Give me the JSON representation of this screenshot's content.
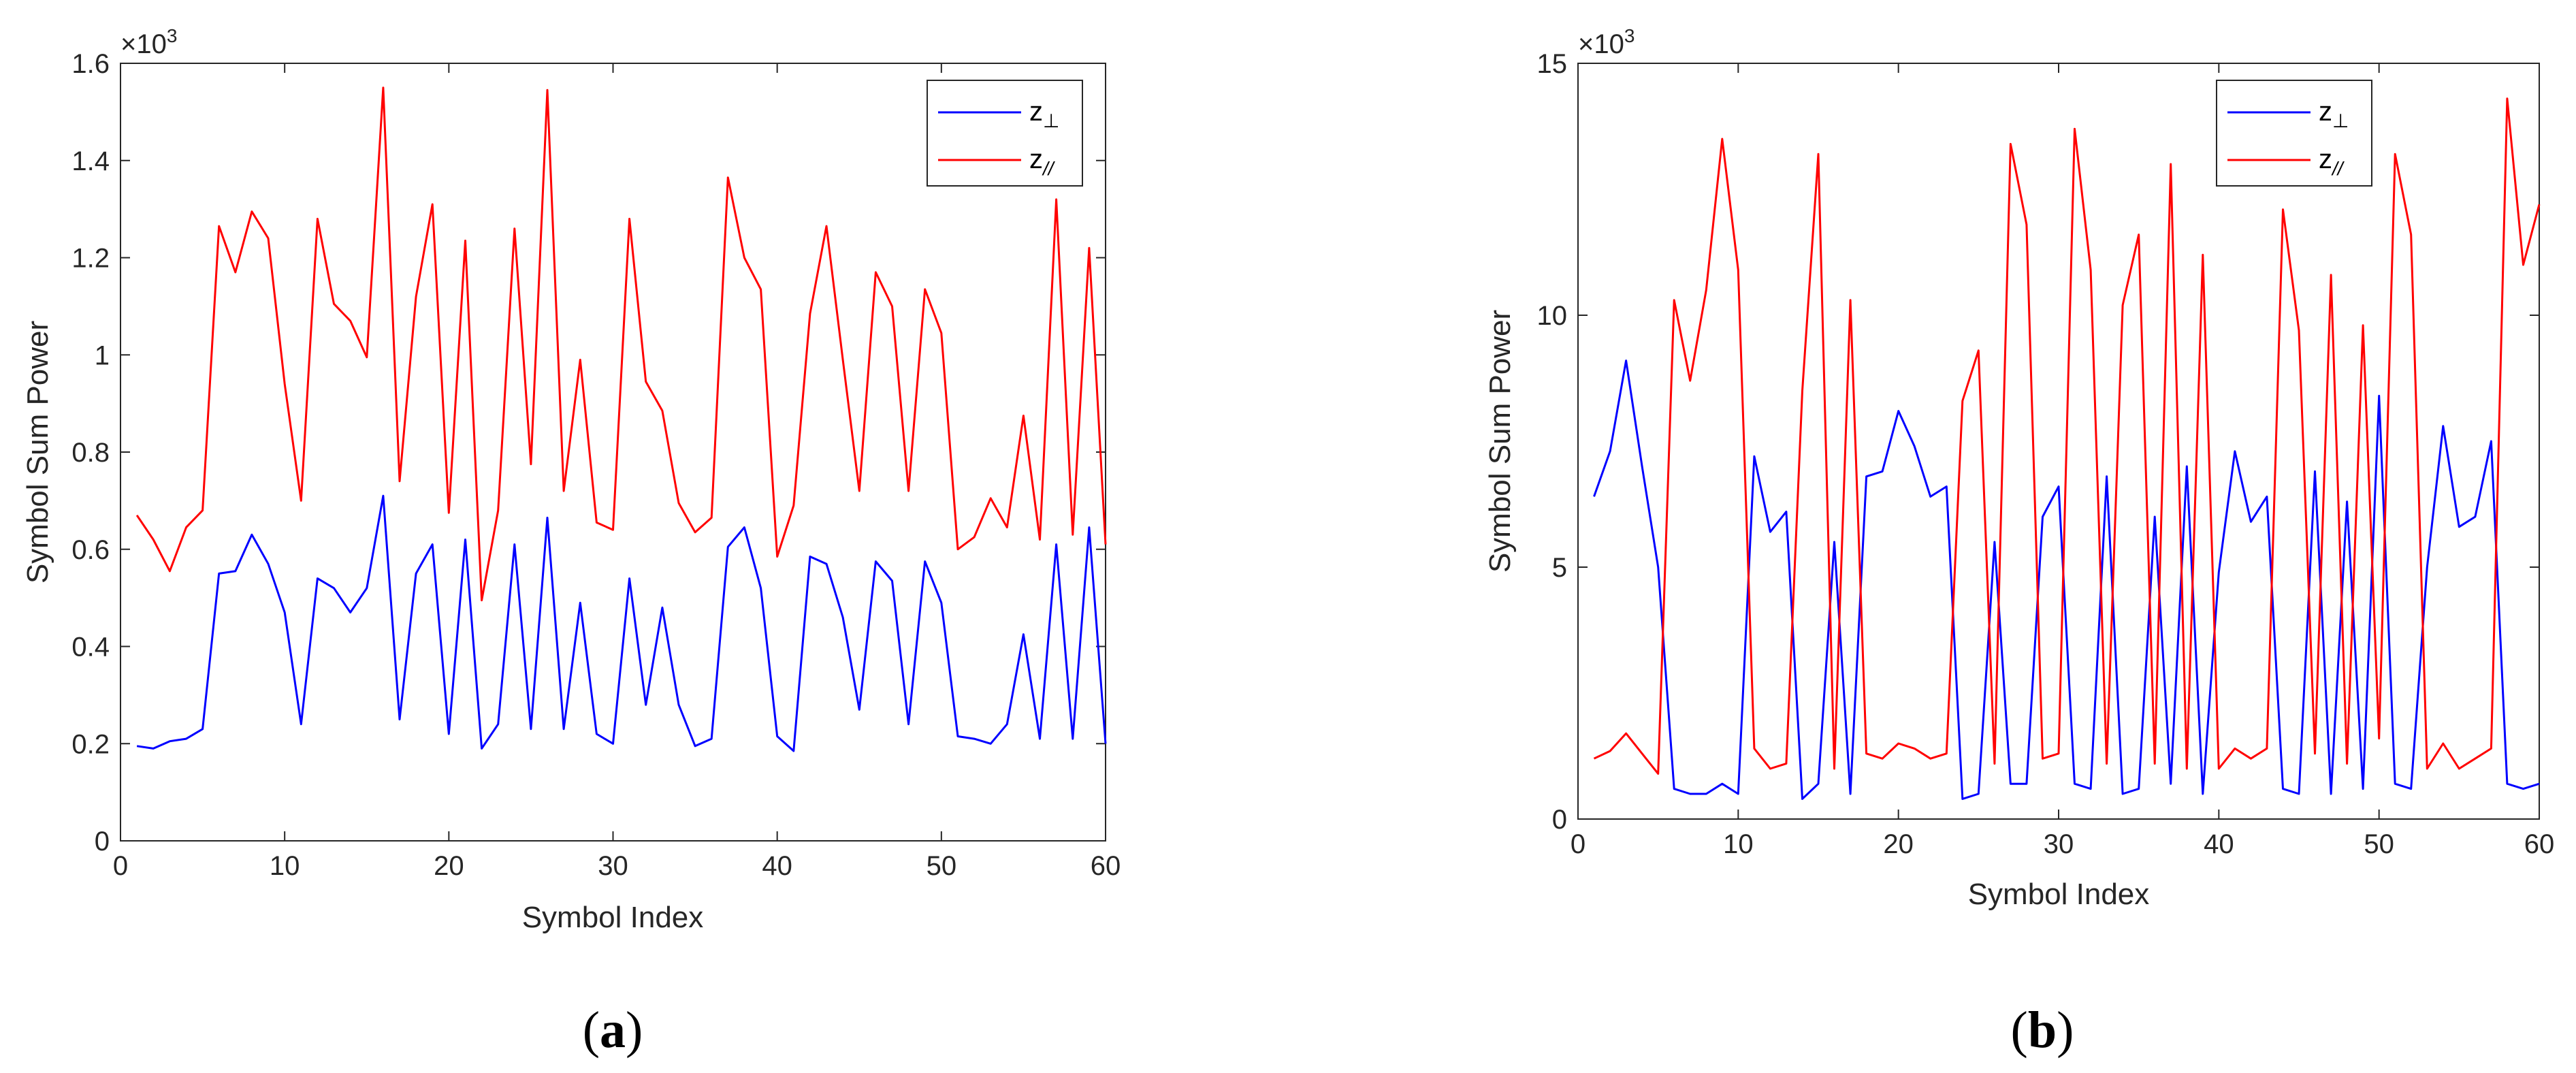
{
  "chart_data": [
    {
      "type": "line",
      "panel_label": "(a)",
      "panel_letter": "a",
      "xlabel": "Symbol Index",
      "ylabel": "Symbol Sum Power",
      "multiplier": "×10",
      "multiplier_exp": "3",
      "xlim": [
        0,
        60
      ],
      "ylim": [
        0,
        1.6
      ],
      "xticks": [
        0,
        10,
        20,
        30,
        40,
        50,
        60
      ],
      "yticks": [
        0,
        0.2,
        0.4,
        0.6,
        0.8,
        1,
        1.2,
        1.4,
        1.6
      ],
      "ytick_labels": [
        "0",
        "0.2",
        "0.4",
        "0.6",
        "0.8",
        "1",
        "1.2",
        "1.4",
        "1.6"
      ],
      "legend_position": "top-right",
      "x": [
        1,
        2,
        3,
        4,
        5,
        6,
        7,
        8,
        9,
        10,
        11,
        12,
        13,
        14,
        15,
        16,
        17,
        18,
        19,
        20,
        21,
        22,
        23,
        24,
        25,
        26,
        27,
        28,
        29,
        30,
        31,
        32,
        33,
        34,
        35,
        36,
        37,
        38,
        39,
        40,
        41,
        42,
        43,
        44,
        45,
        46,
        47,
        48,
        49,
        50,
        51,
        52,
        53,
        54,
        55,
        56,
        57,
        58,
        59,
        60
      ],
      "series": [
        {
          "name": "z⊥",
          "name_base": "z",
          "name_sub": "⊥",
          "color": "#0000ff",
          "values": [
            0.195,
            0.19,
            0.205,
            0.21,
            0.23,
            0.55,
            0.555,
            0.63,
            0.57,
            0.47,
            0.24,
            0.54,
            0.52,
            0.47,
            0.52,
            0.71,
            0.25,
            0.55,
            0.61,
            0.22,
            0.62,
            0.19,
            0.24,
            0.61,
            0.23,
            0.665,
            0.23,
            0.49,
            0.22,
            0.2,
            0.54,
            0.28,
            0.48,
            0.28,
            0.195,
            0.21,
            0.605,
            0.645,
            0.52,
            0.215,
            0.185,
            0.585,
            0.57,
            0.46,
            0.27,
            0.575,
            0.535,
            0.24,
            0.575,
            0.49,
            0.215,
            0.21,
            0.2,
            0.24,
            0.425,
            0.21,
            0.61,
            0.21,
            0.645,
            0.2
          ]
        },
        {
          "name": "z//",
          "name_base": "z",
          "name_sub": "//",
          "color": "#ff0000",
          "values": [
            0.67,
            0.62,
            0.555,
            0.645,
            0.68,
            1.265,
            1.17,
            1.295,
            1.24,
            0.94,
            0.7,
            1.28,
            1.105,
            1.07,
            0.995,
            1.55,
            0.74,
            1.12,
            1.31,
            0.675,
            1.235,
            0.495,
            0.68,
            1.26,
            0.775,
            1.545,
            0.72,
            0.99,
            0.655,
            0.64,
            1.28,
            0.945,
            0.885,
            0.695,
            0.635,
            0.665,
            1.365,
            1.2,
            1.135,
            0.585,
            0.69,
            1.085,
            1.265,
            0.99,
            0.72,
            1.17,
            1.1,
            0.72,
            1.135,
            1.045,
            0.6,
            0.625,
            0.705,
            0.645,
            0.875,
            0.62,
            1.32,
            0.63,
            1.22,
            0.61
          ]
        }
      ]
    },
    {
      "type": "line",
      "panel_label": "(b)",
      "panel_letter": "b",
      "xlabel": "Symbol Index",
      "ylabel": "Symbol Sum Power",
      "multiplier": "×10",
      "multiplier_exp": "3",
      "xlim": [
        0,
        60
      ],
      "ylim": [
        0,
        15
      ],
      "xticks": [
        0,
        10,
        20,
        30,
        40,
        50,
        60
      ],
      "yticks": [
        0,
        5,
        10,
        15
      ],
      "ytick_labels": [
        "0",
        "5",
        "10",
        "15"
      ],
      "legend_position": "top-right",
      "x": [
        1,
        2,
        3,
        4,
        5,
        6,
        7,
        8,
        9,
        10,
        11,
        12,
        13,
        14,
        15,
        16,
        17,
        18,
        19,
        20,
        21,
        22,
        23,
        24,
        25,
        26,
        27,
        28,
        29,
        30,
        31,
        32,
        33,
        34,
        35,
        36,
        37,
        38,
        39,
        40,
        41,
        42,
        43,
        44,
        45,
        46,
        47,
        48,
        49,
        50,
        51,
        52,
        53,
        54,
        55,
        56,
        57,
        58,
        59,
        60
      ],
      "series": [
        {
          "name": "z⊥",
          "name_base": "z",
          "name_sub": "⊥",
          "color": "#0000ff",
          "values": [
            6.4,
            7.3,
            9.1,
            7.0,
            5.0,
            0.6,
            0.5,
            0.5,
            0.7,
            0.5,
            7.2,
            5.7,
            6.1,
            0.4,
            0.7,
            5.5,
            0.5,
            6.8,
            6.9,
            8.1,
            7.4,
            6.4,
            6.6,
            0.4,
            0.5,
            5.5,
            0.7,
            0.7,
            6.0,
            6.6,
            0.7,
            0.6,
            6.8,
            0.5,
            0.6,
            6.0,
            0.7,
            7.0,
            0.5,
            4.9,
            7.3,
            5.9,
            6.4,
            0.6,
            0.5,
            6.9,
            0.5,
            6.3,
            0.6,
            8.4,
            0.7,
            0.6,
            5.0,
            7.8,
            5.8,
            6.0,
            7.5,
            0.7,
            0.6,
            0.7
          ]
        },
        {
          "name": "z//",
          "name_base": "z",
          "name_sub": "//",
          "color": "#ff0000",
          "values": [
            1.2,
            1.35,
            1.7,
            1.3,
            0.9,
            10.3,
            8.7,
            10.5,
            13.5,
            10.9,
            1.4,
            1.0,
            1.1,
            8.5,
            13.2,
            1.0,
            10.3,
            1.3,
            1.2,
            1.5,
            1.4,
            1.2,
            1.3,
            8.3,
            9.3,
            1.1,
            13.4,
            11.8,
            1.2,
            1.3,
            13.7,
            10.9,
            1.1,
            10.2,
            11.6,
            1.1,
            13.0,
            1.0,
            11.2,
            1.0,
            1.4,
            1.2,
            1.4,
            12.1,
            9.7,
            1.3,
            10.8,
            1.1,
            9.8,
            1.6,
            13.2,
            11.6,
            1.0,
            1.5,
            1.0,
            1.2,
            1.4,
            14.3,
            11.0,
            12.2
          ]
        }
      ]
    }
  ]
}
